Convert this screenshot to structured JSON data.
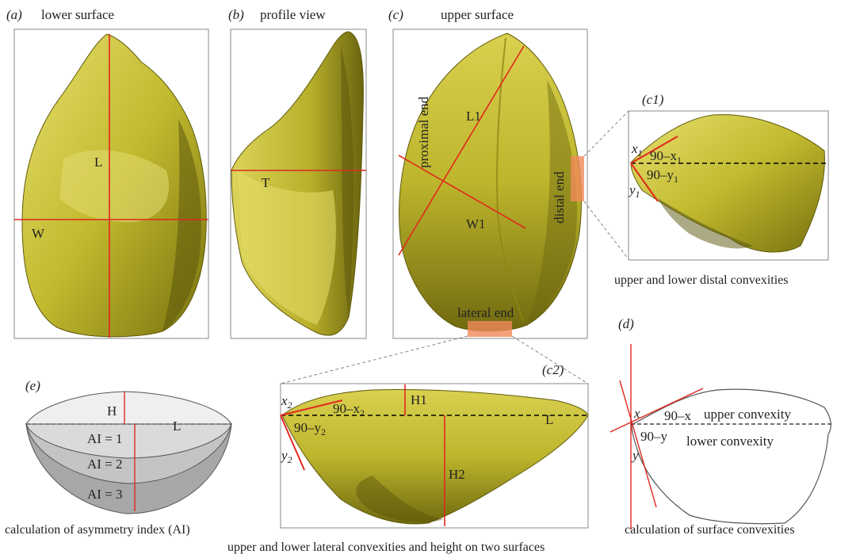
{
  "panels": {
    "a": {
      "tag": "(a)",
      "title": "lower surface",
      "labels": {
        "L": "L",
        "W": "W"
      }
    },
    "b": {
      "tag": "(b)",
      "title": "profile view",
      "labels": {
        "T": "T"
      }
    },
    "c": {
      "tag": "(c)",
      "title": "upper surface",
      "labels": {
        "L1": "L1",
        "W1": "W1",
        "proximal": "proximal end",
        "distal": "distal end",
        "lateral": "lateral end"
      }
    },
    "c1": {
      "tag": "(c1)",
      "caption": "upper and lower distal convexities",
      "labels": {
        "x": "x",
        "x_sub": "1",
        "y": "y",
        "y_sub": "1",
        "ninety_x": "90–x",
        "ninety_x_sub": "1",
        "ninety_y": "90–y",
        "ninety_y_sub": "1"
      }
    },
    "c2": {
      "tag": "(c2)",
      "caption": "upper and lower lateral convexities and height on two surfaces",
      "labels": {
        "x": "x",
        "x_sub": "2",
        "y": "y",
        "y_sub": "2",
        "ninety_x": "90–x",
        "ninety_x_sub": "2",
        "ninety_y": "90–y",
        "ninety_y_sub": "2",
        "H1": "H1",
        "H2": "H2",
        "L": "L"
      }
    },
    "d": {
      "tag": "(d)",
      "caption": "calculation of surface convexities",
      "labels": {
        "x": "x",
        "y": "y",
        "ninety_x": "90–x",
        "ninety_y": "90–y",
        "upper": "upper convexity",
        "lower": "lower convexity"
      }
    },
    "e": {
      "tag": "(e)",
      "caption": "calculation of asymmetry index (AI)",
      "labels": {
        "H": "H",
        "L": "L",
        "ai1": "AI = 1",
        "ai2": "AI = 2",
        "ai3": "AI = 3"
      }
    }
  },
  "colors": {
    "stone": "#c9c23a",
    "stone_dark": "#6f6a14",
    "stone_light": "#e8e27a",
    "measure": "#e0281e",
    "highlight": "#f08a5a",
    "frame": "#8a8a8a"
  }
}
